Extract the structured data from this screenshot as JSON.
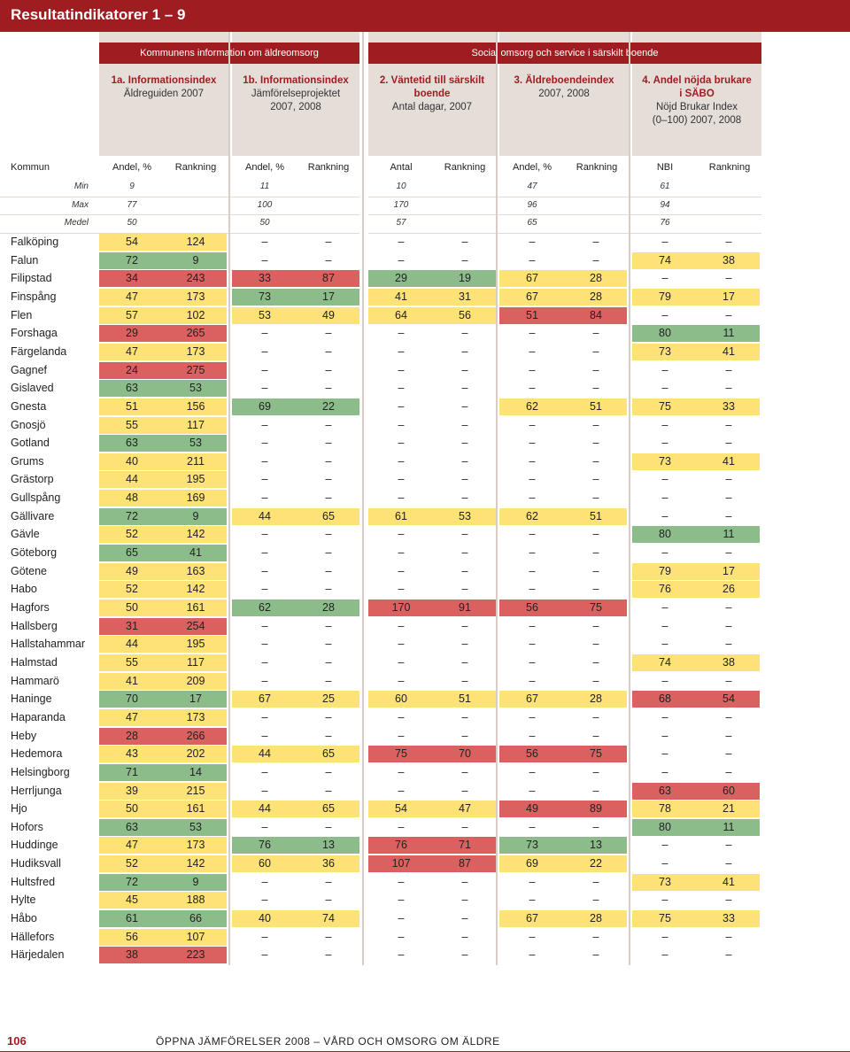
{
  "title": "Resultatindikatorer 1 – 9",
  "groups": [
    "Kommunens information om äldreomsorg",
    "Social omsorg och service i särskilt boende"
  ],
  "col_headers": [
    {
      "a": "1a. Informationsindex",
      "b": "Äldreguiden 2007"
    },
    {
      "a": "1b. Informationsindex",
      "b": "Jämförelseprojektet\n2007, 2008"
    },
    {
      "a": "2. Väntetid till särskilt\nboende",
      "b": "Antal dagar, 2007"
    },
    {
      "a": "3. Äldreboendeindex",
      "b": "2007, 2008"
    },
    {
      "a": "4. Andel nöjda brukare\ni SÄBO",
      "b": "Nöjd Brukar Index\n(0–100) 2007, 2008"
    }
  ],
  "table_header": [
    "Kommun",
    "Andel, %",
    "Rankning",
    "Andel, %",
    "Rankning",
    "Antal",
    "Rankning",
    "Andel, %",
    "Rankning",
    "NBI",
    "Rankning"
  ],
  "stats": [
    {
      "label": "Min",
      "values": [
        "9",
        "11",
        "10",
        "47",
        "61"
      ]
    },
    {
      "label": "Max",
      "values": [
        "77",
        "100",
        "170",
        "96",
        "94"
      ]
    },
    {
      "label": "Medel",
      "values": [
        "50",
        "50",
        "57",
        "65",
        "76"
      ]
    }
  ],
  "colors": {
    "yellow": "#fde275",
    "green": "#8cbc8a",
    "red": "#da6160",
    "brand": "#9f1d21"
  },
  "rows": [
    {
      "name": "Falköping",
      "c": [
        [
          "54",
          "124",
          "y"
        ],
        [
          "–",
          "–",
          "n"
        ],
        [
          "–",
          "–",
          "n"
        ],
        [
          "–",
          "–",
          "n"
        ],
        [
          "–",
          "–",
          "n"
        ]
      ]
    },
    {
      "name": "Falun",
      "c": [
        [
          "72",
          "9",
          "g"
        ],
        [
          "–",
          "–",
          "n"
        ],
        [
          "–",
          "–",
          "n"
        ],
        [
          "–",
          "–",
          "n"
        ],
        [
          "74",
          "38",
          "y"
        ]
      ]
    },
    {
      "name": "Filipstad",
      "c": [
        [
          "34",
          "243",
          "r"
        ],
        [
          "33",
          "87",
          "r"
        ],
        [
          "29",
          "19",
          "g"
        ],
        [
          "67",
          "28",
          "y"
        ],
        [
          "–",
          "–",
          "n"
        ]
      ]
    },
    {
      "name": "Finspång",
      "c": [
        [
          "47",
          "173",
          "y"
        ],
        [
          "73",
          "17",
          "g"
        ],
        [
          "41",
          "31",
          "y"
        ],
        [
          "67",
          "28",
          "y"
        ],
        [
          "79",
          "17",
          "y"
        ]
      ]
    },
    {
      "name": "Flen",
      "c": [
        [
          "57",
          "102",
          "y"
        ],
        [
          "53",
          "49",
          "y"
        ],
        [
          "64",
          "56",
          "y"
        ],
        [
          "51",
          "84",
          "r"
        ],
        [
          "–",
          "–",
          "n"
        ]
      ]
    },
    {
      "name": "Forshaga",
      "c": [
        [
          "29",
          "265",
          "r"
        ],
        [
          "–",
          "–",
          "n"
        ],
        [
          "–",
          "–",
          "n"
        ],
        [
          "–",
          "–",
          "n"
        ],
        [
          "80",
          "11",
          "g"
        ]
      ]
    },
    {
      "name": "Färgelanda",
      "c": [
        [
          "47",
          "173",
          "y"
        ],
        [
          "–",
          "–",
          "n"
        ],
        [
          "–",
          "–",
          "n"
        ],
        [
          "–",
          "–",
          "n"
        ],
        [
          "73",
          "41",
          "y"
        ]
      ]
    },
    {
      "name": "Gagnef",
      "c": [
        [
          "24",
          "275",
          "r"
        ],
        [
          "–",
          "–",
          "n"
        ],
        [
          "–",
          "–",
          "n"
        ],
        [
          "–",
          "–",
          "n"
        ],
        [
          "–",
          "–",
          "n"
        ]
      ]
    },
    {
      "name": "Gislaved",
      "c": [
        [
          "63",
          "53",
          "g"
        ],
        [
          "–",
          "–",
          "n"
        ],
        [
          "–",
          "–",
          "n"
        ],
        [
          "–",
          "–",
          "n"
        ],
        [
          "–",
          "–",
          "n"
        ]
      ]
    },
    {
      "name": "Gnesta",
      "c": [
        [
          "51",
          "156",
          "y"
        ],
        [
          "69",
          "22",
          "g"
        ],
        [
          "–",
          "–",
          "n"
        ],
        [
          "62",
          "51",
          "y"
        ],
        [
          "75",
          "33",
          "y"
        ]
      ]
    },
    {
      "name": "Gnosjö",
      "c": [
        [
          "55",
          "117",
          "y"
        ],
        [
          "–",
          "–",
          "n"
        ],
        [
          "–",
          "–",
          "n"
        ],
        [
          "–",
          "–",
          "n"
        ],
        [
          "–",
          "–",
          "n"
        ]
      ]
    },
    {
      "name": "Gotland",
      "c": [
        [
          "63",
          "53",
          "g"
        ],
        [
          "–",
          "–",
          "n"
        ],
        [
          "–",
          "–",
          "n"
        ],
        [
          "–",
          "–",
          "n"
        ],
        [
          "–",
          "–",
          "n"
        ]
      ]
    },
    {
      "name": "Grums",
      "c": [
        [
          "40",
          "211",
          "y"
        ],
        [
          "–",
          "–",
          "n"
        ],
        [
          "–",
          "–",
          "n"
        ],
        [
          "–",
          "–",
          "n"
        ],
        [
          "73",
          "41",
          "y"
        ]
      ]
    },
    {
      "name": "Grästorp",
      "c": [
        [
          "44",
          "195",
          "y"
        ],
        [
          "–",
          "–",
          "n"
        ],
        [
          "–",
          "–",
          "n"
        ],
        [
          "–",
          "–",
          "n"
        ],
        [
          "–",
          "–",
          "n"
        ]
      ]
    },
    {
      "name": "Gullspång",
      "c": [
        [
          "48",
          "169",
          "y"
        ],
        [
          "–",
          "–",
          "n"
        ],
        [
          "–",
          "–",
          "n"
        ],
        [
          "–",
          "–",
          "n"
        ],
        [
          "–",
          "–",
          "n"
        ]
      ]
    },
    {
      "name": "Gällivare",
      "c": [
        [
          "72",
          "9",
          "g"
        ],
        [
          "44",
          "65",
          "y"
        ],
        [
          "61",
          "53",
          "y"
        ],
        [
          "62",
          "51",
          "y"
        ],
        [
          "–",
          "–",
          "n"
        ]
      ]
    },
    {
      "name": "Gävle",
      "c": [
        [
          "52",
          "142",
          "y"
        ],
        [
          "–",
          "–",
          "n"
        ],
        [
          "–",
          "–",
          "n"
        ],
        [
          "–",
          "–",
          "n"
        ],
        [
          "80",
          "11",
          "g"
        ]
      ]
    },
    {
      "name": "Göteborg",
      "c": [
        [
          "65",
          "41",
          "g"
        ],
        [
          "–",
          "–",
          "n"
        ],
        [
          "–",
          "–",
          "n"
        ],
        [
          "–",
          "–",
          "n"
        ],
        [
          "–",
          "–",
          "n"
        ]
      ]
    },
    {
      "name": "Götene",
      "c": [
        [
          "49",
          "163",
          "y"
        ],
        [
          "–",
          "–",
          "n"
        ],
        [
          "–",
          "–",
          "n"
        ],
        [
          "–",
          "–",
          "n"
        ],
        [
          "79",
          "17",
          "y"
        ]
      ]
    },
    {
      "name": "Habo",
      "c": [
        [
          "52",
          "142",
          "y"
        ],
        [
          "–",
          "–",
          "n"
        ],
        [
          "–",
          "–",
          "n"
        ],
        [
          "–",
          "–",
          "n"
        ],
        [
          "76",
          "26",
          "y"
        ]
      ]
    },
    {
      "name": "Hagfors",
      "c": [
        [
          "50",
          "161",
          "y"
        ],
        [
          "62",
          "28",
          "g"
        ],
        [
          "170",
          "91",
          "r"
        ],
        [
          "56",
          "75",
          "r"
        ],
        [
          "–",
          "–",
          "n"
        ]
      ]
    },
    {
      "name": "Hallsberg",
      "c": [
        [
          "31",
          "254",
          "r"
        ],
        [
          "–",
          "–",
          "n"
        ],
        [
          "–",
          "–",
          "n"
        ],
        [
          "–",
          "–",
          "n"
        ],
        [
          "–",
          "–",
          "n"
        ]
      ]
    },
    {
      "name": "Hallstahammar",
      "c": [
        [
          "44",
          "195",
          "y"
        ],
        [
          "–",
          "–",
          "n"
        ],
        [
          "–",
          "–",
          "n"
        ],
        [
          "–",
          "–",
          "n"
        ],
        [
          "–",
          "–",
          "n"
        ]
      ]
    },
    {
      "name": "Halmstad",
      "c": [
        [
          "55",
          "117",
          "y"
        ],
        [
          "–",
          "–",
          "n"
        ],
        [
          "–",
          "–",
          "n"
        ],
        [
          "–",
          "–",
          "n"
        ],
        [
          "74",
          "38",
          "y"
        ]
      ]
    },
    {
      "name": "Hammarö",
      "c": [
        [
          "41",
          "209",
          "y"
        ],
        [
          "–",
          "–",
          "n"
        ],
        [
          "–",
          "–",
          "n"
        ],
        [
          "–",
          "–",
          "n"
        ],
        [
          "–",
          "–",
          "n"
        ]
      ]
    },
    {
      "name": "Haninge",
      "c": [
        [
          "70",
          "17",
          "g"
        ],
        [
          "67",
          "25",
          "y"
        ],
        [
          "60",
          "51",
          "y"
        ],
        [
          "67",
          "28",
          "y"
        ],
        [
          "68",
          "54",
          "r"
        ]
      ]
    },
    {
      "name": "Haparanda",
      "c": [
        [
          "47",
          "173",
          "y"
        ],
        [
          "–",
          "–",
          "n"
        ],
        [
          "–",
          "–",
          "n"
        ],
        [
          "–",
          "–",
          "n"
        ],
        [
          "–",
          "–",
          "n"
        ]
      ]
    },
    {
      "name": "Heby",
      "c": [
        [
          "28",
          "266",
          "r"
        ],
        [
          "–",
          "–",
          "n"
        ],
        [
          "–",
          "–",
          "n"
        ],
        [
          "–",
          "–",
          "n"
        ],
        [
          "–",
          "–",
          "n"
        ]
      ]
    },
    {
      "name": "Hedemora",
      "c": [
        [
          "43",
          "202",
          "y"
        ],
        [
          "44",
          "65",
          "y"
        ],
        [
          "75",
          "70",
          "r"
        ],
        [
          "56",
          "75",
          "r"
        ],
        [
          "–",
          "–",
          "n"
        ]
      ]
    },
    {
      "name": "Helsingborg",
      "c": [
        [
          "71",
          "14",
          "g"
        ],
        [
          "–",
          "–",
          "n"
        ],
        [
          "–",
          "–",
          "n"
        ],
        [
          "–",
          "–",
          "n"
        ],
        [
          "–",
          "–",
          "n"
        ]
      ]
    },
    {
      "name": "Herrljunga",
      "c": [
        [
          "39",
          "215",
          "y"
        ],
        [
          "–",
          "–",
          "n"
        ],
        [
          "–",
          "–",
          "n"
        ],
        [
          "–",
          "–",
          "n"
        ],
        [
          "63",
          "60",
          "r"
        ]
      ]
    },
    {
      "name": "Hjo",
      "c": [
        [
          "50",
          "161",
          "y"
        ],
        [
          "44",
          "65",
          "y"
        ],
        [
          "54",
          "47",
          "y"
        ],
        [
          "49",
          "89",
          "r"
        ],
        [
          "78",
          "21",
          "y"
        ]
      ]
    },
    {
      "name": "Hofors",
      "c": [
        [
          "63",
          "53",
          "g"
        ],
        [
          "–",
          "–",
          "n"
        ],
        [
          "–",
          "–",
          "n"
        ],
        [
          "–",
          "–",
          "n"
        ],
        [
          "80",
          "11",
          "g"
        ]
      ]
    },
    {
      "name": "Huddinge",
      "c": [
        [
          "47",
          "173",
          "y"
        ],
        [
          "76",
          "13",
          "g"
        ],
        [
          "76",
          "71",
          "r"
        ],
        [
          "73",
          "13",
          "g"
        ],
        [
          "–",
          "–",
          "n"
        ]
      ]
    },
    {
      "name": "Hudiksvall",
      "c": [
        [
          "52",
          "142",
          "y"
        ],
        [
          "60",
          "36",
          "y"
        ],
        [
          "107",
          "87",
          "r"
        ],
        [
          "69",
          "22",
          "y"
        ],
        [
          "–",
          "–",
          "n"
        ]
      ]
    },
    {
      "name": "Hultsfred",
      "c": [
        [
          "72",
          "9",
          "g"
        ],
        [
          "–",
          "–",
          "n"
        ],
        [
          "–",
          "–",
          "n"
        ],
        [
          "–",
          "–",
          "n"
        ],
        [
          "73",
          "41",
          "y"
        ]
      ]
    },
    {
      "name": "Hylte",
      "c": [
        [
          "45",
          "188",
          "y"
        ],
        [
          "–",
          "–",
          "n"
        ],
        [
          "–",
          "–",
          "n"
        ],
        [
          "–",
          "–",
          "n"
        ],
        [
          "–",
          "–",
          "n"
        ]
      ]
    },
    {
      "name": "Håbo",
      "c": [
        [
          "61",
          "66",
          "g"
        ],
        [
          "40",
          "74",
          "y"
        ],
        [
          "–",
          "–",
          "n"
        ],
        [
          "67",
          "28",
          "y"
        ],
        [
          "75",
          "33",
          "y"
        ]
      ]
    },
    {
      "name": "Hällefors",
      "c": [
        [
          "56",
          "107",
          "y"
        ],
        [
          "–",
          "–",
          "n"
        ],
        [
          "–",
          "–",
          "n"
        ],
        [
          "–",
          "–",
          "n"
        ],
        [
          "–",
          "–",
          "n"
        ]
      ]
    },
    {
      "name": "Härjedalen",
      "c": [
        [
          "38",
          "223",
          "r"
        ],
        [
          "–",
          "–",
          "n"
        ],
        [
          "–",
          "–",
          "n"
        ],
        [
          "–",
          "–",
          "n"
        ],
        [
          "–",
          "–",
          "n"
        ]
      ]
    }
  ],
  "footer": {
    "page": "106",
    "text": "ÖPPNA JÄMFÖRELSER 2008 – VÅRD OCH OMSORG OM ÄLDRE"
  }
}
